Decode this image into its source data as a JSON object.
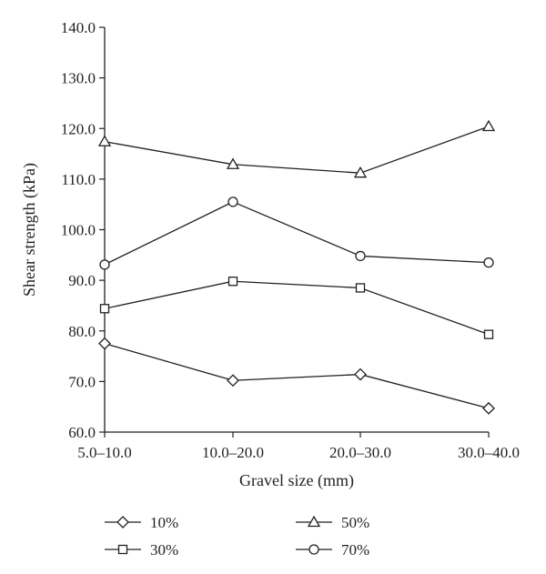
{
  "chart_data": {
    "type": "line",
    "categories": [
      "5.0–10.0",
      "10.0–20.0",
      "20.0–30.0",
      "30.0–40.0"
    ],
    "xlabel": "Gravel size (mm)",
    "ylabel": "Shear strength (kPa)",
    "ylim": [
      60,
      140
    ],
    "yticks": [
      60,
      70,
      80,
      90,
      100,
      110,
      120,
      130,
      140
    ],
    "ytick_labels": [
      "60.0",
      "70.0",
      "80.0",
      "90.0",
      "100.0",
      "110.0",
      "120.0",
      "130.0",
      "140.0"
    ],
    "grid": false,
    "legend_position": "bottom",
    "series": [
      {
        "name": "10%",
        "marker": "diamond",
        "values": [
          77.5,
          70.2,
          71.4,
          64.7
        ]
      },
      {
        "name": "30%",
        "marker": "square",
        "values": [
          84.4,
          89.8,
          88.5,
          79.3
        ]
      },
      {
        "name": "50%",
        "marker": "triangle",
        "values": [
          117.4,
          112.9,
          111.2,
          120.4
        ]
      },
      {
        "name": "70%",
        "marker": "circle",
        "values": [
          93.1,
          105.5,
          94.8,
          93.5
        ]
      }
    ],
    "line_color": "#231f20"
  }
}
